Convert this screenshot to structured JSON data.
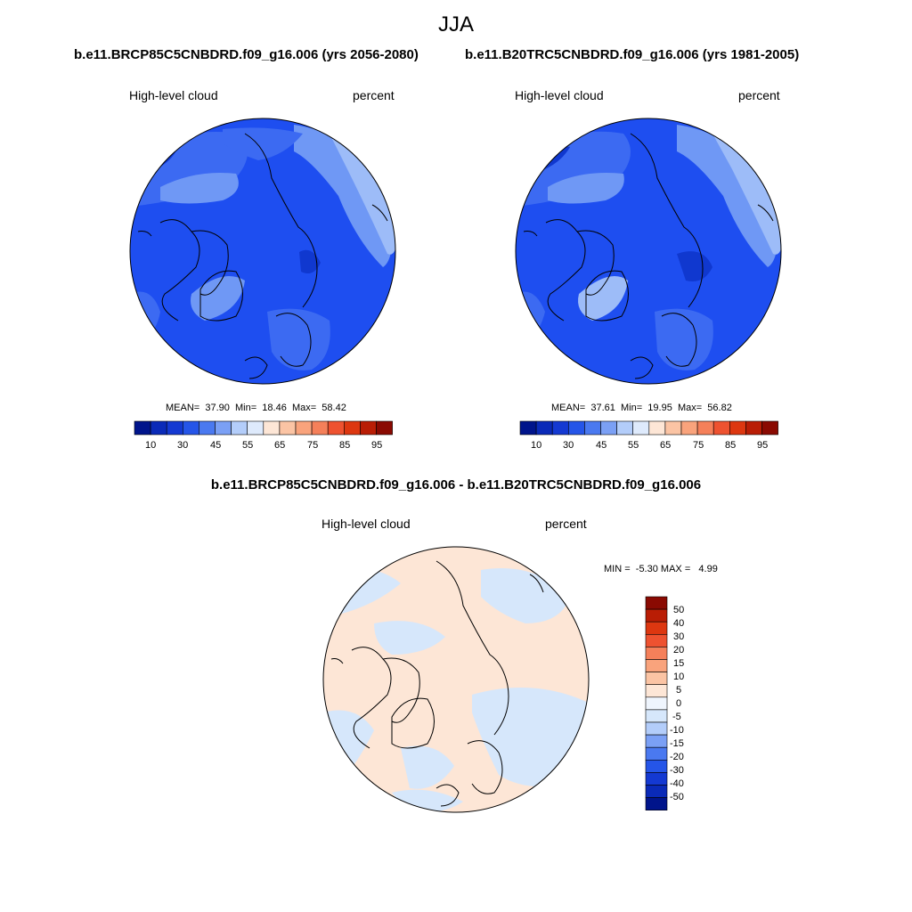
{
  "season": "JJA",
  "palette": {
    "seq": [
      "#00148b",
      "#0a2ab8",
      "#1439d2",
      "#2555e8",
      "#4a79f0",
      "#7ba0f5",
      "#b3cdfa",
      "#deeafc",
      "#fde6d6",
      "#fbc4a4",
      "#f9a37c",
      "#f5805a",
      "#ee5230",
      "#dd3710",
      "#b91d05",
      "#8a0a02"
    ],
    "div": [
      "#00148b",
      "#0a2ab8",
      "#1439d2",
      "#2555e8",
      "#4a79f0",
      "#7ba0f5",
      "#b3cdfa",
      "#d6e7fb",
      "#eff5fd",
      "#fde6d6",
      "#fbc4a4",
      "#f9a37c",
      "#f5805a",
      "#ee5230",
      "#dd3710",
      "#b91d05",
      "#8a0a02"
    ],
    "land_line": "#000000"
  },
  "chart_data": [
    {
      "type": "heatmap",
      "projection": "north-polar-stereographic",
      "title": "b.e11.BRCP85C5CNBDRD.f09_g16.006 (yrs 2056-2080)",
      "variable": "High-level cloud",
      "units": "percent",
      "stats": {
        "mean_label": "MEAN=",
        "mean": "37.90",
        "min_label": "Min=",
        "min": "18.46",
        "max_label": "Max=",
        "max": "58.42"
      },
      "colorbar_labels": [
        "10",
        "30",
        "45",
        "55",
        "65",
        "75",
        "85",
        "95"
      ]
    },
    {
      "type": "heatmap",
      "projection": "north-polar-stereographic",
      "title": "b.e11.B20TRC5CNBDRD.f09_g16.006 (yrs 1981-2005)",
      "variable": "High-level cloud",
      "units": "percent",
      "stats": {
        "mean_label": "MEAN=",
        "mean": "37.61",
        "min_label": "Min=",
        "min": "19.95",
        "max_label": "Max=",
        "max": "56.82"
      },
      "colorbar_labels": [
        "10",
        "30",
        "45",
        "55",
        "65",
        "75",
        "85",
        "95"
      ]
    },
    {
      "type": "heatmap",
      "projection": "north-polar-stereographic",
      "title": "b.e11.BRCP85C5CNBDRD.f09_g16.006 - b.e11.B20TRC5CNBDRD.f09_g16.006",
      "variable": "High-level cloud",
      "units": "percent",
      "stats": {
        "min_label": "MIN =",
        "min": "-5.30",
        "max_label": "MAX =",
        "max": "4.99"
      },
      "colorbar_labels": [
        "50",
        "40",
        "30",
        "20",
        "15",
        "10",
        "5",
        "0",
        "-5",
        "-10",
        "-15",
        "-20",
        "-30",
        "-40",
        "-50"
      ]
    }
  ]
}
